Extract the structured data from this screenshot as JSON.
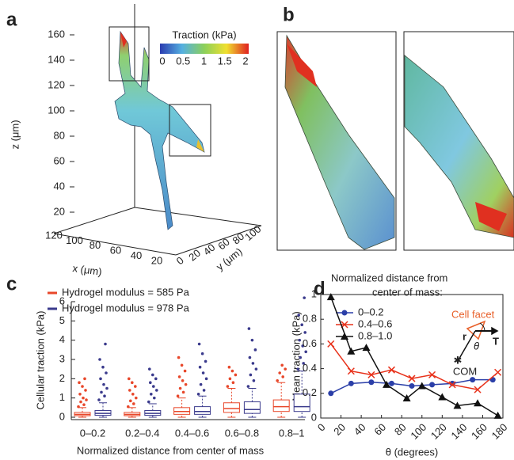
{
  "panel_a": {
    "label": "a",
    "colorbar_title": "Traction (kPa)",
    "colorbar_ticks": [
      0,
      0.5,
      1,
      1.5,
      2
    ],
    "zlabel": "z (μm)",
    "zticks": [
      20,
      40,
      60,
      80,
      100,
      120,
      140,
      160
    ],
    "xlabel": "x (μm)",
    "xticks": [
      120,
      100,
      80,
      60,
      40,
      20
    ],
    "ylabel": "y (μm)",
    "yticks": [
      0,
      20,
      40,
      60,
      80,
      100
    ]
  },
  "panel_b": {
    "label": "b"
  },
  "chart_data": [
    {
      "type": "box",
      "label": "c",
      "ylabel": "Cellular traction (kPa)",
      "xlabel": "Normalized distance from center of mass",
      "categories": [
        "0–0.2",
        "0.2–0.4",
        "0.4–0.6",
        "0.6–0.8",
        "0.8–1"
      ],
      "ylim": [
        0,
        6
      ],
      "yticks": [
        0,
        1,
        2,
        3,
        4,
        5,
        6
      ],
      "series": [
        {
          "name": "Hydrogel modulus = 585 Pa",
          "color": "#e8472a",
          "boxes": [
            {
              "whislo": 0,
              "q1": 0.08,
              "med": 0.15,
              "q3": 0.25,
              "whishi": 0.5,
              "fliers": [
                0.55,
                0.65,
                0.8,
                0.9,
                1.0,
                1.2,
                1.4,
                1.6,
                1.8,
                2.0
              ]
            },
            {
              "whislo": 0,
              "q1": 0.08,
              "med": 0.15,
              "q3": 0.25,
              "whishi": 0.5,
              "fliers": [
                0.55,
                0.7,
                0.85,
                1.0,
                1.2,
                1.4,
                1.6,
                1.8,
                2.0
              ]
            },
            {
              "whislo": 0,
              "q1": 0.15,
              "med": 0.3,
              "q3": 0.5,
              "whishi": 1.0,
              "fliers": [
                1.1,
                1.3,
                1.5,
                1.7,
                1.9,
                2.1,
                2.4,
                2.7,
                3.1
              ]
            },
            {
              "whislo": 0,
              "q1": 0.25,
              "med": 0.45,
              "q3": 0.75,
              "whishi": 1.5,
              "fliers": [
                1.6,
                1.8,
                2.0,
                2.2,
                2.4,
                2.6
              ]
            },
            {
              "whislo": 0,
              "q1": 0.3,
              "med": 0.55,
              "q3": 0.9,
              "whishi": 1.8,
              "fliers": [
                1.9,
                2.1,
                2.3,
                2.5,
                2.7
              ]
            }
          ]
        },
        {
          "name": "Hydrogel modulus = 978 Pa",
          "color": "#3a3a8c",
          "boxes": [
            {
              "whislo": 0,
              "q1": 0.1,
              "med": 0.2,
              "q3": 0.35,
              "whishi": 0.75,
              "fliers": [
                0.9,
                1.1,
                1.3,
                1.5,
                1.7,
                2.0,
                2.3,
                2.6,
                3.0,
                3.8
              ]
            },
            {
              "whislo": 0,
              "q1": 0.1,
              "med": 0.2,
              "q3": 0.35,
              "whishi": 0.7,
              "fliers": [
                0.8,
                1.0,
                1.2,
                1.4,
                1.6,
                1.8,
                2.0,
                2.2,
                2.5
              ]
            },
            {
              "whislo": 0,
              "q1": 0.15,
              "med": 0.3,
              "q3": 0.55,
              "whishi": 1.1,
              "fliers": [
                1.2,
                1.4,
                1.7,
                2.0,
                2.3,
                2.6,
                2.9,
                3.3,
                3.8
              ]
            },
            {
              "whislo": 0,
              "q1": 0.2,
              "med": 0.4,
              "q3": 0.8,
              "whishi": 1.5,
              "fliers": [
                1.6,
                1.9,
                2.2,
                2.5,
                2.8,
                3.1,
                3.5,
                4.0,
                4.6
              ]
            },
            {
              "whislo": 0,
              "q1": 0.3,
              "med": 0.55,
              "q3": 1.2,
              "whishi": 2.4,
              "fliers": [
                2.5,
                2.8,
                3.1,
                3.4,
                3.7,
                4.0,
                4.4,
                4.8,
                5.3,
                6.2
              ]
            }
          ]
        }
      ]
    },
    {
      "type": "line",
      "label": "d",
      "ylabel": "Mean traction (kPa)",
      "xlabel": "θ (degrees)",
      "legend_title": [
        "Normalized distance from",
        "center of mass:"
      ],
      "xlim": [
        0,
        180
      ],
      "xticks": [
        0,
        20,
        40,
        60,
        80,
        100,
        120,
        140,
        160,
        180
      ],
      "ylim": [
        0,
        1
      ],
      "yticks": [
        0,
        0.2,
        0.4,
        0.6,
        0.8,
        1
      ],
      "series": [
        {
          "name": "0–0.2",
          "color": "#2b3fa8",
          "marker": "circle",
          "x": [
            10,
            30,
            50,
            70,
            90,
            110,
            130,
            150,
            170
          ],
          "values": [
            0.2,
            0.28,
            0.29,
            0.28,
            0.26,
            0.27,
            0.28,
            0.31,
            0.31
          ]
        },
        {
          "name": "0.4–0.6",
          "color": "#e8311a",
          "marker": "cross",
          "x": [
            10,
            30,
            50,
            70,
            90,
            110,
            130,
            155,
            175
          ],
          "values": [
            0.6,
            0.38,
            0.35,
            0.39,
            0.32,
            0.35,
            0.27,
            0.23,
            0.37
          ]
        },
        {
          "name": "0.8–1.0",
          "color": "#111111",
          "marker": "triangle",
          "x": [
            10,
            30,
            45,
            65,
            85,
            100,
            120,
            135,
            155,
            175
          ],
          "values": [
            0.98,
            0.54,
            0.57,
            0.27,
            0.16,
            0.26,
            0.17,
            0.1,
            0.12,
            0.02
          ]
        }
      ],
      "inset": {
        "facet": "Cell facet",
        "r": "r",
        "theta": "θ",
        "t": "T",
        "com": "COM"
      }
    }
  ]
}
